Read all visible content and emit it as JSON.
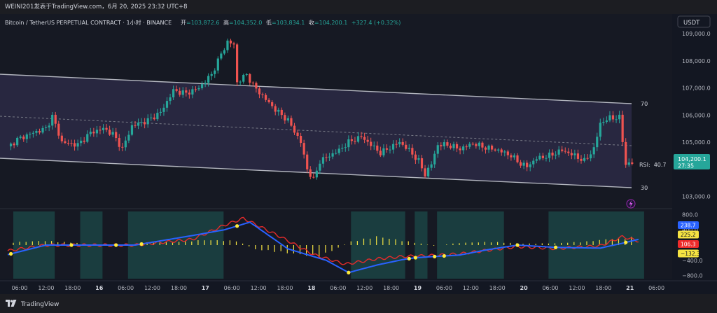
{
  "header": {
    "publish_line": "WEINI201发表于TradingView.com，6月 20, 2025 23:32 UTC+8"
  },
  "legend": {
    "symbol": "Bitcoin / TetherUS PERPETUAL CONTRACT · 1小时 · BINANCE",
    "open_label": "开",
    "open_value": "=103,872.6",
    "high_label": "高",
    "high_value": "=104,352.0",
    "low_label": "低",
    "low_value": "=103,834.1",
    "close_label": "收",
    "close_value": "=104,200.1",
    "change": "+327.4 (+0.32%)"
  },
  "currency_button": "USDT",
  "price_badge": {
    "price": "104,200.1",
    "countdown": "27:35"
  },
  "rsi_overlay": {
    "upper": "70",
    "lower": "30",
    "label": "RSI:",
    "value": "40.7"
  },
  "indicator_badges": [
    {
      "text": "238.7",
      "color": "#2962ff"
    },
    {
      "text": "225.2",
      "color": "#f5e342"
    },
    {
      "text": "106.3",
      "color": "#ef2b2b"
    },
    {
      "text": "−132.3",
      "color": "#f5e342"
    }
  ],
  "footer_brand": "TradingView",
  "colors": {
    "up": "#26a69a",
    "down": "#ef5350",
    "band": "#2b2a45",
    "osc_blue": "#2962ff",
    "osc_red": "#e52b2b",
    "osc_yellow": "#f5e342",
    "shade": "#1c4a4a"
  },
  "chart_data": [
    {
      "type": "candlestick",
      "title": "Bitcoin / TetherUS PERPETUAL CONTRACT · 1小时 · BINANCE",
      "y_ticks": [
        "109,000.0",
        "108,000.0",
        "107,000.0",
        "106,000.0",
        "105,000.0",
        "104,000.0",
        "103,000.0"
      ],
      "y_tick_values": [
        109000,
        108000,
        107000,
        106000,
        105000,
        104000,
        103000
      ],
      "ylim": [
        102700,
        109600
      ],
      "x_ticks": [
        "06:00",
        "12:00",
        "18:00",
        "16",
        "06:00",
        "12:00",
        "18:00",
        "17",
        "06:00",
        "12:00",
        "18:00",
        "18",
        "06:00",
        "12:00",
        "18:00",
        "19",
        "06:00",
        "12:00",
        "18:00",
        "20",
        "06:00",
        "12:00",
        "18:00",
        "21",
        "06:00"
      ],
      "close_anchors": [
        [
          0,
          104800
        ],
        [
          3,
          105100
        ],
        [
          8,
          105350
        ],
        [
          12,
          105500
        ],
        [
          14,
          105950
        ],
        [
          17,
          105000
        ],
        [
          22,
          104900
        ],
        [
          26,
          105350
        ],
        [
          30,
          105500
        ],
        [
          33,
          105300
        ],
        [
          36,
          104750
        ],
        [
          39,
          105600
        ],
        [
          44,
          105800
        ],
        [
          48,
          106100
        ],
        [
          52,
          106900
        ],
        [
          56,
          106800
        ],
        [
          60,
          107000
        ],
        [
          64,
          107500
        ],
        [
          67,
          108250
        ],
        [
          69,
          108700
        ],
        [
          71,
          108600
        ],
        [
          72,
          107200
        ],
        [
          75,
          107500
        ],
        [
          77,
          107100
        ],
        [
          80,
          106700
        ],
        [
          84,
          106200
        ],
        [
          88,
          105800
        ],
        [
          92,
          105000
        ],
        [
          94,
          104000
        ],
        [
          96,
          103600
        ],
        [
          98,
          104300
        ],
        [
          101,
          104500
        ],
        [
          104,
          104700
        ],
        [
          107,
          105000
        ],
        [
          111,
          105200
        ],
        [
          114,
          104900
        ],
        [
          117,
          104600
        ],
        [
          120,
          104800
        ],
        [
          123,
          105000
        ],
        [
          126,
          104700
        ],
        [
          129,
          104300
        ],
        [
          131,
          103800
        ],
        [
          133,
          104200
        ],
        [
          135,
          104900
        ],
        [
          138,
          104900
        ],
        [
          142,
          104750
        ],
        [
          146,
          104950
        ],
        [
          150,
          104800
        ],
        [
          154,
          104700
        ],
        [
          158,
          104500
        ],
        [
          161,
          104200
        ],
        [
          163,
          104100
        ],
        [
          166,
          104400
        ],
        [
          170,
          104500
        ],
        [
          174,
          104700
        ],
        [
          178,
          104500
        ],
        [
          181,
          104300
        ],
        [
          184,
          104750
        ],
        [
          186,
          105700
        ],
        [
          189,
          105900
        ],
        [
          192,
          105900
        ],
        [
          194,
          104200
        ],
        [
          196,
          104200
        ]
      ],
      "last_close": 104200.1,
      "rsi": {
        "upper": 70,
        "lower": 30,
        "value": 40.7
      }
    },
    {
      "type": "line",
      "title": "",
      "y_ticks": [
        "800.0",
        "400.0",
        "0.0",
        "−400.0",
        "−800.0"
      ],
      "y_tick_values": [
        800,
        400,
        0,
        -400,
        -800
      ],
      "ylim": [
        -880,
        880
      ],
      "series": [
        {
          "values": [
            [
              0,
              -250
            ],
            [
              12,
              0
            ],
            [
              24,
              0
            ],
            [
              40,
              0
            ],
            [
              58,
              250
            ],
            [
              68,
              400
            ],
            [
              76,
              600
            ],
            [
              88,
              -100
            ],
            [
              100,
              -400
            ],
            [
              107,
              -720
            ],
            [
              116,
              -520
            ],
            [
              124,
              -380
            ],
            [
              128,
              -330
            ],
            [
              134,
              -300
            ],
            [
              142,
              -260
            ],
            [
              150,
              -130
            ],
            [
              160,
              0
            ],
            [
              172,
              -60
            ],
            [
              186,
              -80
            ],
            [
              193,
              50
            ],
            [
              198,
              150
            ]
          ]
        },
        {
          "values": [
            [
              0,
              -150
            ],
            [
              12,
              0
            ],
            [
              24,
              0
            ],
            [
              40,
              0
            ],
            [
              58,
              150
            ],
            [
              68,
              520
            ],
            [
              74,
              700
            ],
            [
              86,
              200
            ],
            [
              96,
              -250
            ],
            [
              106,
              -500
            ],
            [
              116,
              -360
            ],
            [
              124,
              -300
            ],
            [
              134,
              -270
            ],
            [
              142,
              -230
            ],
            [
              152,
              -120
            ],
            [
              160,
              -40
            ],
            [
              172,
              -90
            ],
            [
              186,
              -20
            ],
            [
              193,
              220
            ],
            [
              198,
              106
            ]
          ]
        },
        {
          "values": [
            [
              0,
              80
            ],
            [
              10,
              120
            ],
            [
              20,
              60
            ],
            [
              30,
              -40
            ],
            [
              40,
              40
            ],
            [
              50,
              90
            ],
            [
              60,
              140
            ],
            [
              70,
              120
            ],
            [
              76,
              -120
            ],
            [
              86,
              -220
            ],
            [
              96,
              -330
            ],
            [
              106,
              100
            ],
            [
              114,
              240
            ],
            [
              124,
              100
            ],
            [
              132,
              -20
            ],
            [
              140,
              60
            ],
            [
              150,
              90
            ],
            [
              160,
              40
            ],
            [
              170,
              50
            ],
            [
              180,
              100
            ],
            [
              188,
              180
            ],
            [
              195,
              225
            ]
          ]
        }
      ],
      "shaded_x_ranges": [
        [
          0,
          13
        ],
        [
          21,
          28
        ],
        [
          36,
          66
        ],
        [
          106,
          123
        ],
        [
          126,
          130
        ],
        [
          133,
          154
        ],
        [
          168,
          198
        ]
      ]
    }
  ]
}
